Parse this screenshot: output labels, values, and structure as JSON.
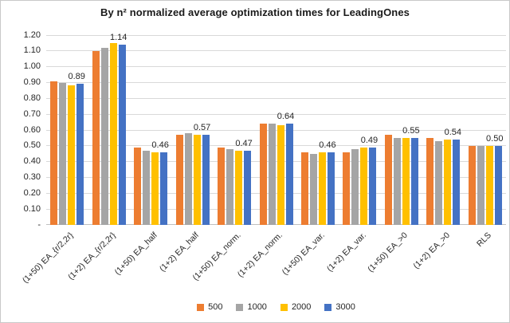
{
  "frame": {
    "background": "#ffffff",
    "border_color": "#c9c9c9"
  },
  "chart_data": {
    "type": "bar",
    "title": "By n² normalized average optimization times for LeadingOnes",
    "title_color": "#1a1a1a",
    "categories": [
      "(1+50) EA_{r/2,2r}",
      "(1+2) EA_{r/2,2r}",
      "(1+50) EA_half",
      "(1+2) EA_half",
      "(1+50) EA_norm.",
      "(1+2) EA_norm.",
      "(1+50) EA_var.",
      "(1+2) EA_var.",
      "(1+50) EA_>0",
      "(1+2) EA_>0",
      "RLS"
    ],
    "series": [
      {
        "name": "500",
        "color": "#ED7D31",
        "values": [
          0.91,
          1.1,
          0.49,
          0.57,
          0.49,
          0.64,
          0.46,
          0.46,
          0.57,
          0.55,
          0.5
        ]
      },
      {
        "name": "1000",
        "color": "#A5A5A5",
        "values": [
          0.9,
          1.12,
          0.47,
          0.58,
          0.48,
          0.64,
          0.45,
          0.48,
          0.55,
          0.53,
          0.5
        ]
      },
      {
        "name": "2000",
        "color": "#FFC000",
        "values": [
          0.88,
          1.15,
          0.46,
          0.57,
          0.47,
          0.63,
          0.46,
          0.49,
          0.55,
          0.54,
          0.5
        ]
      },
      {
        "name": "3000",
        "color": "#4472C4",
        "values": [
          0.89,
          1.14,
          0.46,
          0.57,
          0.47,
          0.64,
          0.46,
          0.49,
          0.55,
          0.54,
          0.5
        ]
      }
    ],
    "data_labels": {
      "series": "3000",
      "values": [
        "0.89",
        "1.14",
        "0.46",
        "0.57",
        "0.47",
        "0.64",
        "0.46",
        "0.49",
        "0.55",
        "0.54",
        "0.50"
      ]
    },
    "ylim": [
      0,
      1.2
    ],
    "y_tick_step": 0.1,
    "y_tick_labels": [
      "-",
      "0.10",
      "0.20",
      "0.30",
      "0.40",
      "0.50",
      "0.60",
      "0.70",
      "0.80",
      "0.90",
      "1.00",
      "1.10",
      "1.20"
    ],
    "grid": true,
    "gridline_color": "#d9d9d9",
    "axis_line_color": "#bfbfbf",
    "axis_text_color": "#262626",
    "legend_position": "bottom",
    "legend_entries": [
      "500",
      "1000",
      "2000",
      "3000"
    ]
  }
}
